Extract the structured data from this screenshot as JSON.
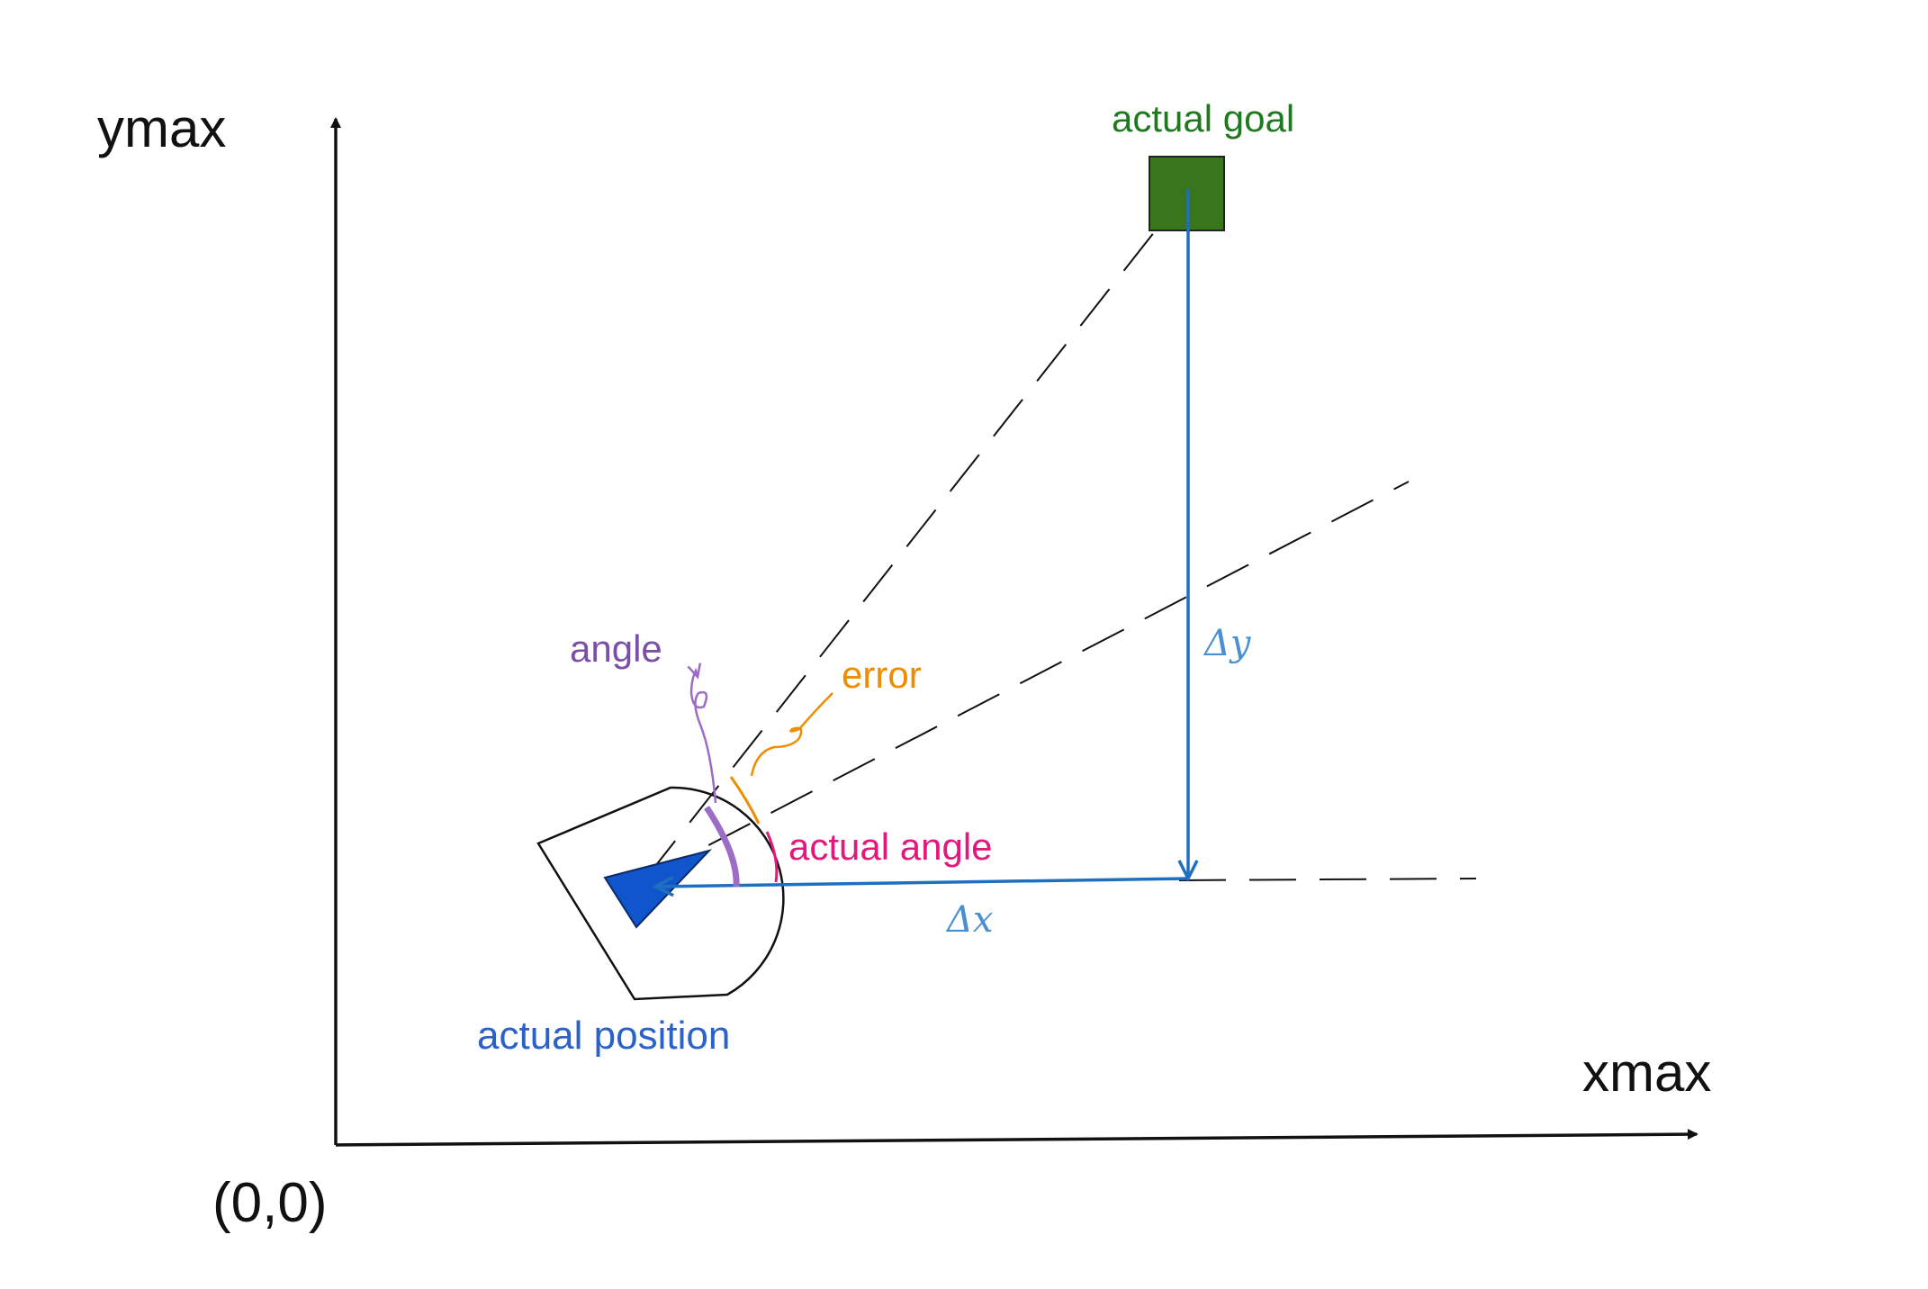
{
  "axes": {
    "y_label": "ymax",
    "x_label": "xmax",
    "origin_label": "(0,0)"
  },
  "labels": {
    "goal": "actual goal",
    "position": "actual position",
    "angle": "angle",
    "error": "error",
    "actual_angle": "actual angle",
    "delta_x": "Δx",
    "delta_y": "Δy"
  },
  "colors": {
    "axis": "#111111",
    "goal_fill": "#38761d",
    "goal_label": "#1f7a1f",
    "position_label": "#2a62c9",
    "robot_triangle": "#1155cc",
    "delta_arrows": "#1f6fc0",
    "delta_labels": "#4a8fd0",
    "angle": "#7b4fa8",
    "angle_arc": "#9c6cc7",
    "error": "#f08c00",
    "actual_angle": "#e5177d",
    "dashed": "#111111"
  }
}
